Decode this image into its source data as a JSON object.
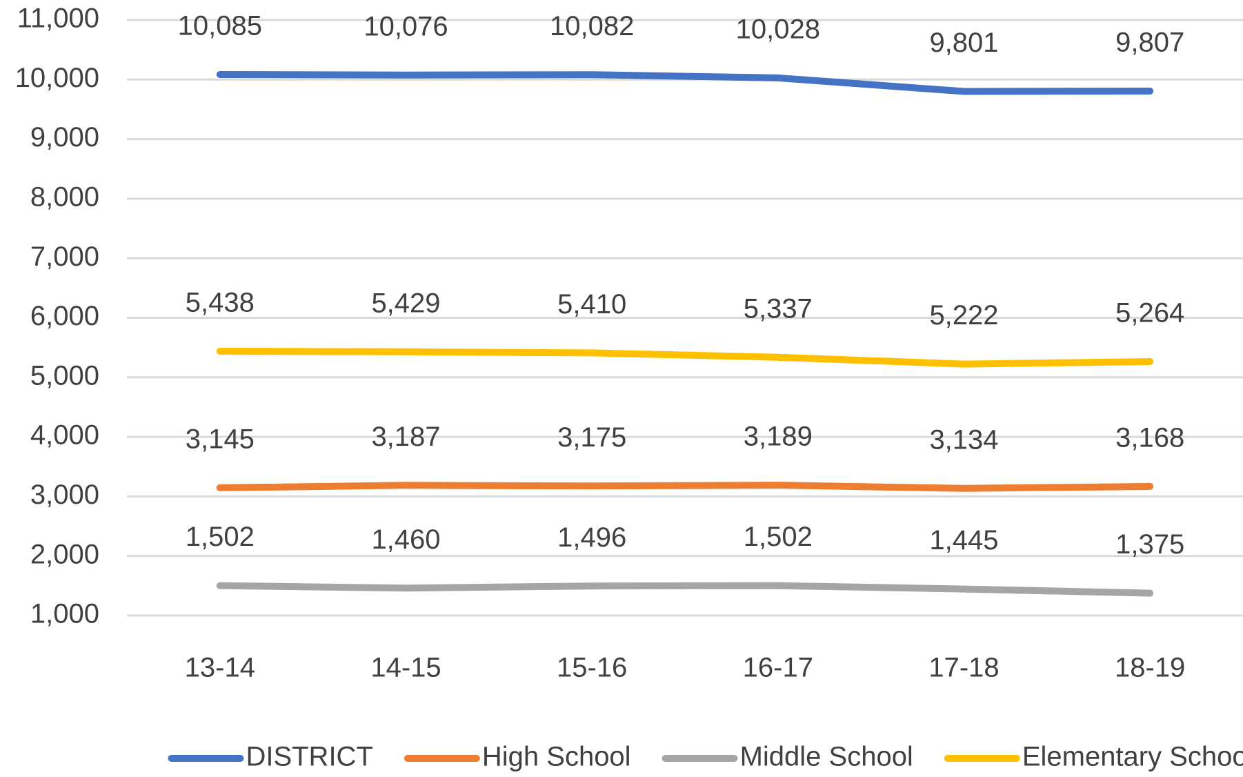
{
  "chart_data": {
    "type": "line",
    "categories": [
      "13-14",
      "14-15",
      "15-16",
      "16-17",
      "17-18",
      "18-19"
    ],
    "series": [
      {
        "name": "DISTRICT",
        "color": "#4472c4",
        "values": [
          10085,
          10076,
          10082,
          10028,
          9801,
          9807
        ],
        "value_labels": [
          "10,085",
          "10,076",
          "10,082",
          "10,028",
          "9,801",
          "9,807"
        ]
      },
      {
        "name": "High School",
        "color": "#ed7d31",
        "values": [
          3145,
          3187,
          3175,
          3189,
          3134,
          3168
        ],
        "value_labels": [
          "3,145",
          "3,187",
          "3,175",
          "3,189",
          "3,134",
          "3,168"
        ]
      },
      {
        "name": "Middle School",
        "color": "#a5a5a5",
        "values": [
          1502,
          1460,
          1496,
          1502,
          1445,
          1375
        ],
        "value_labels": [
          "1,502",
          "1,460",
          "1,496",
          "1,502",
          "1,445",
          "1,375"
        ]
      },
      {
        "name": "Elementary School",
        "color": "#ffc000",
        "values": [
          5438,
          5429,
          5410,
          5337,
          5222,
          5264
        ],
        "value_labels": [
          "5,438",
          "5,429",
          "5,410",
          "5,337",
          "5,222",
          "5,264"
        ]
      }
    ],
    "ylim": [
      1000,
      11000
    ],
    "yticks": [
      {
        "value": 1000,
        "label": "1,000"
      },
      {
        "value": 2000,
        "label": "2,000"
      },
      {
        "value": 3000,
        "label": "3,000"
      },
      {
        "value": 4000,
        "label": "4,000"
      },
      {
        "value": 5000,
        "label": "5,000"
      },
      {
        "value": 6000,
        "label": "6,000"
      },
      {
        "value": 7000,
        "label": "7,000"
      },
      {
        "value": 8000,
        "label": "8,000"
      },
      {
        "value": 9000,
        "label": "9,000"
      },
      {
        "value": 10000,
        "label": "10,000"
      },
      {
        "value": 11000,
        "label": "11,000"
      }
    ],
    "grid": true,
    "legend": "bottom"
  }
}
